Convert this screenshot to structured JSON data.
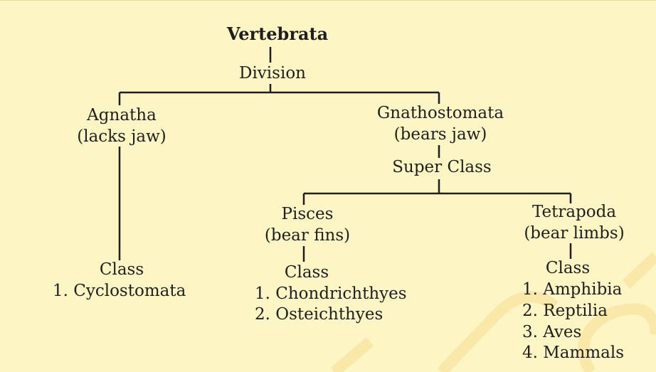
{
  "root": {
    "title": "Vertebrata",
    "level": "Division"
  },
  "agnatha": {
    "name": "Agnatha",
    "note": "(lacks jaw)",
    "class_label": "Class",
    "classes": [
      "1. Cyclostomata"
    ]
  },
  "gnathostomata": {
    "name": "Gnathostomata",
    "note": "(bears jaw)",
    "level": "Super Class"
  },
  "pisces": {
    "name": "Pisces",
    "note": "(bear fins)",
    "class_label": "Class",
    "classes": [
      "1. Chondrichthyes",
      "2. Osteichthyes"
    ]
  },
  "tetrapoda": {
    "name": "Tetrapoda",
    "note": "(bear limbs)",
    "class_label": "Class",
    "classes": [
      "1. Amphibia",
      "2. Reptilia",
      "3. Aves",
      "4. Mammals"
    ]
  },
  "colors": {
    "background": "#fdf6c4",
    "text": "#1e1e1e",
    "lines": "#1e1e1e",
    "watermark": "#f5d27a"
  }
}
